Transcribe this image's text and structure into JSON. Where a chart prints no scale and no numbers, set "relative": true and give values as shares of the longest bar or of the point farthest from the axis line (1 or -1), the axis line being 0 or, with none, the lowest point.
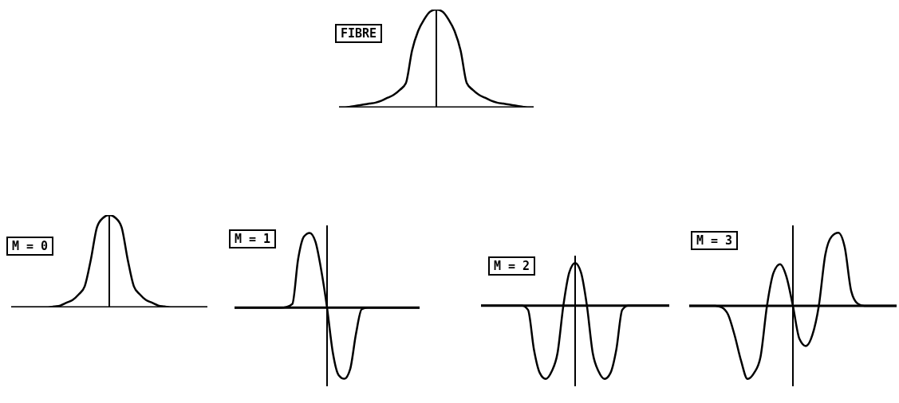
{
  "chart_data": [
    {
      "type": "line",
      "title": "FIBRE",
      "relative": true,
      "categories": [
        null,
        null,
        null,
        null,
        null,
        null,
        null,
        null,
        null,
        null,
        null,
        null,
        null,
        null,
        null,
        null,
        null,
        null,
        null,
        null,
        null,
        null,
        null,
        null,
        null,
        null,
        null,
        null,
        null,
        null,
        null,
        null,
        null
      ],
      "values": [
        0,
        0,
        0.01,
        0.02,
        0.03,
        0.04,
        0.05,
        0.07,
        0.1,
        0.13,
        0.18,
        0.25,
        0.58,
        0.78,
        0.9,
        0.98,
        1,
        0.98,
        0.9,
        0.78,
        0.58,
        0.25,
        0.18,
        0.13,
        0.1,
        0.07,
        0.05,
        0.04,
        0.03,
        0.02,
        0.01,
        0,
        0
      ],
      "color": "#000000"
    },
    {
      "type": "line",
      "title": "M = 0",
      "relative": true,
      "categories": [
        null,
        null,
        null,
        null,
        null,
        null,
        null,
        null,
        null,
        null,
        null,
        null,
        null,
        null,
        null,
        null,
        null,
        null,
        null,
        null,
        null,
        null,
        null,
        null,
        null,
        null,
        null,
        null,
        null,
        null,
        null,
        null,
        null
      ],
      "values": [
        0,
        0,
        0,
        0,
        0,
        0,
        0,
        0.01,
        0.02,
        0.05,
        0.08,
        0.14,
        0.23,
        0.52,
        0.87,
        0.97,
        1,
        0.97,
        0.87,
        0.52,
        0.23,
        0.14,
        0.08,
        0.05,
        0.02,
        0.01,
        0,
        0,
        0,
        0,
        0,
        0,
        0
      ],
      "color": "#000000"
    },
    {
      "type": "line",
      "title": "M = 1",
      "relative": true,
      "categories": [
        null,
        null,
        null,
        null,
        null,
        null,
        null,
        null,
        null,
        null,
        null,
        null,
        null,
        null,
        null,
        null,
        null,
        null,
        null,
        null,
        null,
        null,
        null,
        null,
        null,
        null,
        null,
        null,
        null,
        null,
        null,
        null,
        null
      ],
      "values": [
        0,
        0,
        0,
        0,
        0,
        0,
        0,
        0,
        0,
        0.01,
        0.05,
        0.65,
        0.95,
        1,
        0.88,
        0.5,
        0,
        -0.6,
        -0.9,
        -0.95,
        -0.82,
        -0.35,
        -0.02,
        0,
        0,
        0,
        0,
        0,
        0,
        0,
        0,
        0,
        0
      ],
      "color": "#000000"
    },
    {
      "type": "line",
      "title": "M = 2",
      "relative": true,
      "categories": [
        null,
        null,
        null,
        null,
        null,
        null,
        null,
        null,
        null,
        null,
        null,
        null,
        null,
        null,
        null,
        null,
        null,
        null,
        null,
        null,
        null,
        null,
        null,
        null,
        null,
        null,
        null,
        null,
        null,
        null,
        null,
        null,
        null
      ],
      "values": [
        0,
        0,
        0,
        0,
        0,
        0,
        0,
        0,
        -0.06,
        -0.6,
        -0.92,
        -1,
        -0.9,
        -0.65,
        0,
        0.45,
        0.58,
        0.45,
        0,
        -0.65,
        -0.9,
        -1,
        -0.92,
        -0.6,
        -0.06,
        0,
        0,
        0,
        0,
        0,
        0,
        0,
        0
      ],
      "color": "#000000"
    },
    {
      "type": "line",
      "title": "M = 3",
      "relative": true,
      "categories": [
        null,
        null,
        null,
        null,
        null,
        null,
        null,
        null,
        null,
        null,
        null,
        null,
        null,
        null,
        null,
        null,
        null,
        null,
        null,
        null,
        null,
        null,
        null,
        null,
        null,
        null,
        null,
        null,
        null,
        null,
        null,
        null,
        null
      ],
      "values": [
        0,
        0,
        0,
        0,
        0,
        -0.02,
        -0.12,
        -0.4,
        -0.75,
        -1,
        -0.92,
        -0.7,
        0,
        0.45,
        0.57,
        0.4,
        0,
        -0.45,
        -0.55,
        -0.4,
        0,
        0.7,
        0.95,
        1,
        0.8,
        0.2,
        0.03,
        0,
        0,
        0,
        0,
        0,
        0
      ],
      "color": "#000000"
    }
  ]
}
